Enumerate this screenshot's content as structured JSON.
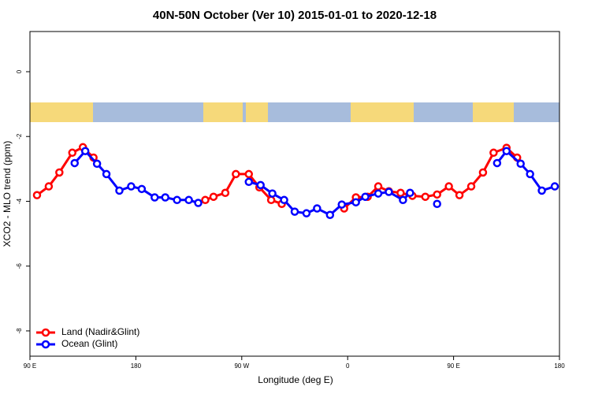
{
  "chart_data": {
    "type": "line",
    "title": "40N-50N October (Ver 10)   2015-01-01 to 2020-12-18",
    "x_label": "Longitude (deg E)",
    "y_label": "XCO2 - MLO trend (ppm)",
    "xlim": [
      90,
      540
    ],
    "ylim": [
      -8.78,
      1.24
    ],
    "xticks": [
      {
        "value": 90,
        "label": "90 E"
      },
      {
        "value": 180,
        "label": "180"
      },
      {
        "value": 270,
        "label": "90 W"
      },
      {
        "value": 360,
        "label": "0"
      },
      {
        "value": 450,
        "label": "90 E"
      },
      {
        "value": 540,
        "label": "180"
      }
    ],
    "yticks": [
      0,
      -2,
      -4,
      -6,
      -8
    ],
    "legend": "bottom-left",
    "series": [
      {
        "name": "Land (Nadir&Glint)",
        "color": "#ff0000",
        "x": [
          96,
          106,
          115,
          126,
          135,
          144,
          null,
          239,
          246,
          256,
          265,
          276,
          285,
          295,
          304,
          null,
          357,
          367,
          377,
          386,
          395,
          405,
          415,
          426,
          436,
          446,
          455,
          465,
          475,
          484,
          495,
          504
        ],
        "values": [
          -3.81,
          -3.54,
          -3.11,
          -2.5,
          -2.33,
          -2.65,
          null,
          -3.96,
          -3.86,
          -3.74,
          -3.16,
          -3.16,
          -3.57,
          -3.96,
          -4.08,
          null,
          -4.22,
          -3.88,
          -3.86,
          -3.54,
          -3.69,
          -3.74,
          -3.83,
          -3.86,
          -3.79,
          -3.54,
          -3.81,
          -3.54,
          -3.11,
          -2.5,
          -2.35,
          -2.65
        ]
      },
      {
        "name": "Ocean (Glint)",
        "color": "#0000ff",
        "x": [
          128,
          137,
          147,
          155,
          166,
          176,
          185,
          196,
          205,
          215,
          225,
          233,
          null,
          276,
          286,
          296,
          306,
          315,
          325,
          334,
          345,
          355,
          367,
          375,
          386,
          395,
          407,
          413,
          null,
          436,
          null,
          487,
          495,
          507,
          515,
          525,
          536
        ],
        "values": [
          -2.82,
          -2.45,
          -2.84,
          -3.16,
          -3.67,
          -3.54,
          -3.62,
          -3.88,
          -3.88,
          -3.96,
          -3.96,
          -4.05,
          null,
          -3.4,
          -3.5,
          -3.76,
          -3.96,
          -4.32,
          -4.37,
          -4.22,
          -4.42,
          -4.1,
          -4.03,
          -3.86,
          -3.76,
          -3.71,
          -3.96,
          -3.74,
          null,
          -4.08,
          null,
          -2.82,
          -2.45,
          -2.84,
          -3.16,
          -3.67,
          -3.54
        ]
      }
    ]
  }
}
